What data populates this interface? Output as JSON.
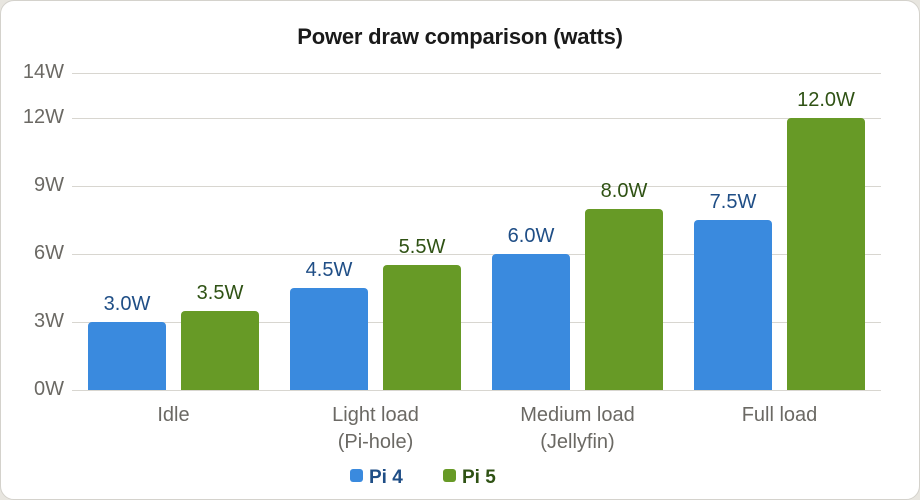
{
  "chart_data": {
    "type": "bar",
    "title": "Power draw comparison (watts)",
    "xlabel": "",
    "ylabel": "",
    "categories": [
      "Idle",
      "Light load (Pi-hole)",
      "Medium load (Jellyfin)",
      "Full load"
    ],
    "category_lines": [
      [
        "Idle"
      ],
      [
        "Light load",
        "(Pi-hole)"
      ],
      [
        "Medium load",
        "(Jellyfin)"
      ],
      [
        "Full load"
      ]
    ],
    "series": [
      {
        "name": "Pi 4",
        "values": [
          3.0,
          4.5,
          6.0,
          7.5
        ],
        "labels": [
          "3.0W",
          "4.5W",
          "6.0W",
          "7.5W"
        ],
        "color": "#3a8ade",
        "label_color": "#1f4e86"
      },
      {
        "name": "Pi 5",
        "values": [
          3.5,
          5.5,
          8.0,
          12.0
        ],
        "labels": [
          "3.5W",
          "5.5W",
          "8.0W",
          "12.0W"
        ],
        "color": "#679a26",
        "label_color": "#2f5214"
      }
    ],
    "yticks": [
      0,
      3,
      6,
      9,
      12,
      14
    ],
    "ytick_labels": [
      "0W",
      "3W",
      "6W",
      "9W",
      "12W",
      "14W"
    ],
    "ylim": [
      0,
      14
    ],
    "grid": true,
    "legend_position": "bottom"
  },
  "legend": {
    "items": [
      {
        "label": "Pi 4",
        "color": "#3a8ade",
        "text_color": "#1f4e86"
      },
      {
        "label": "Pi 5",
        "color": "#679a26",
        "text_color": "#2f5214"
      }
    ]
  }
}
